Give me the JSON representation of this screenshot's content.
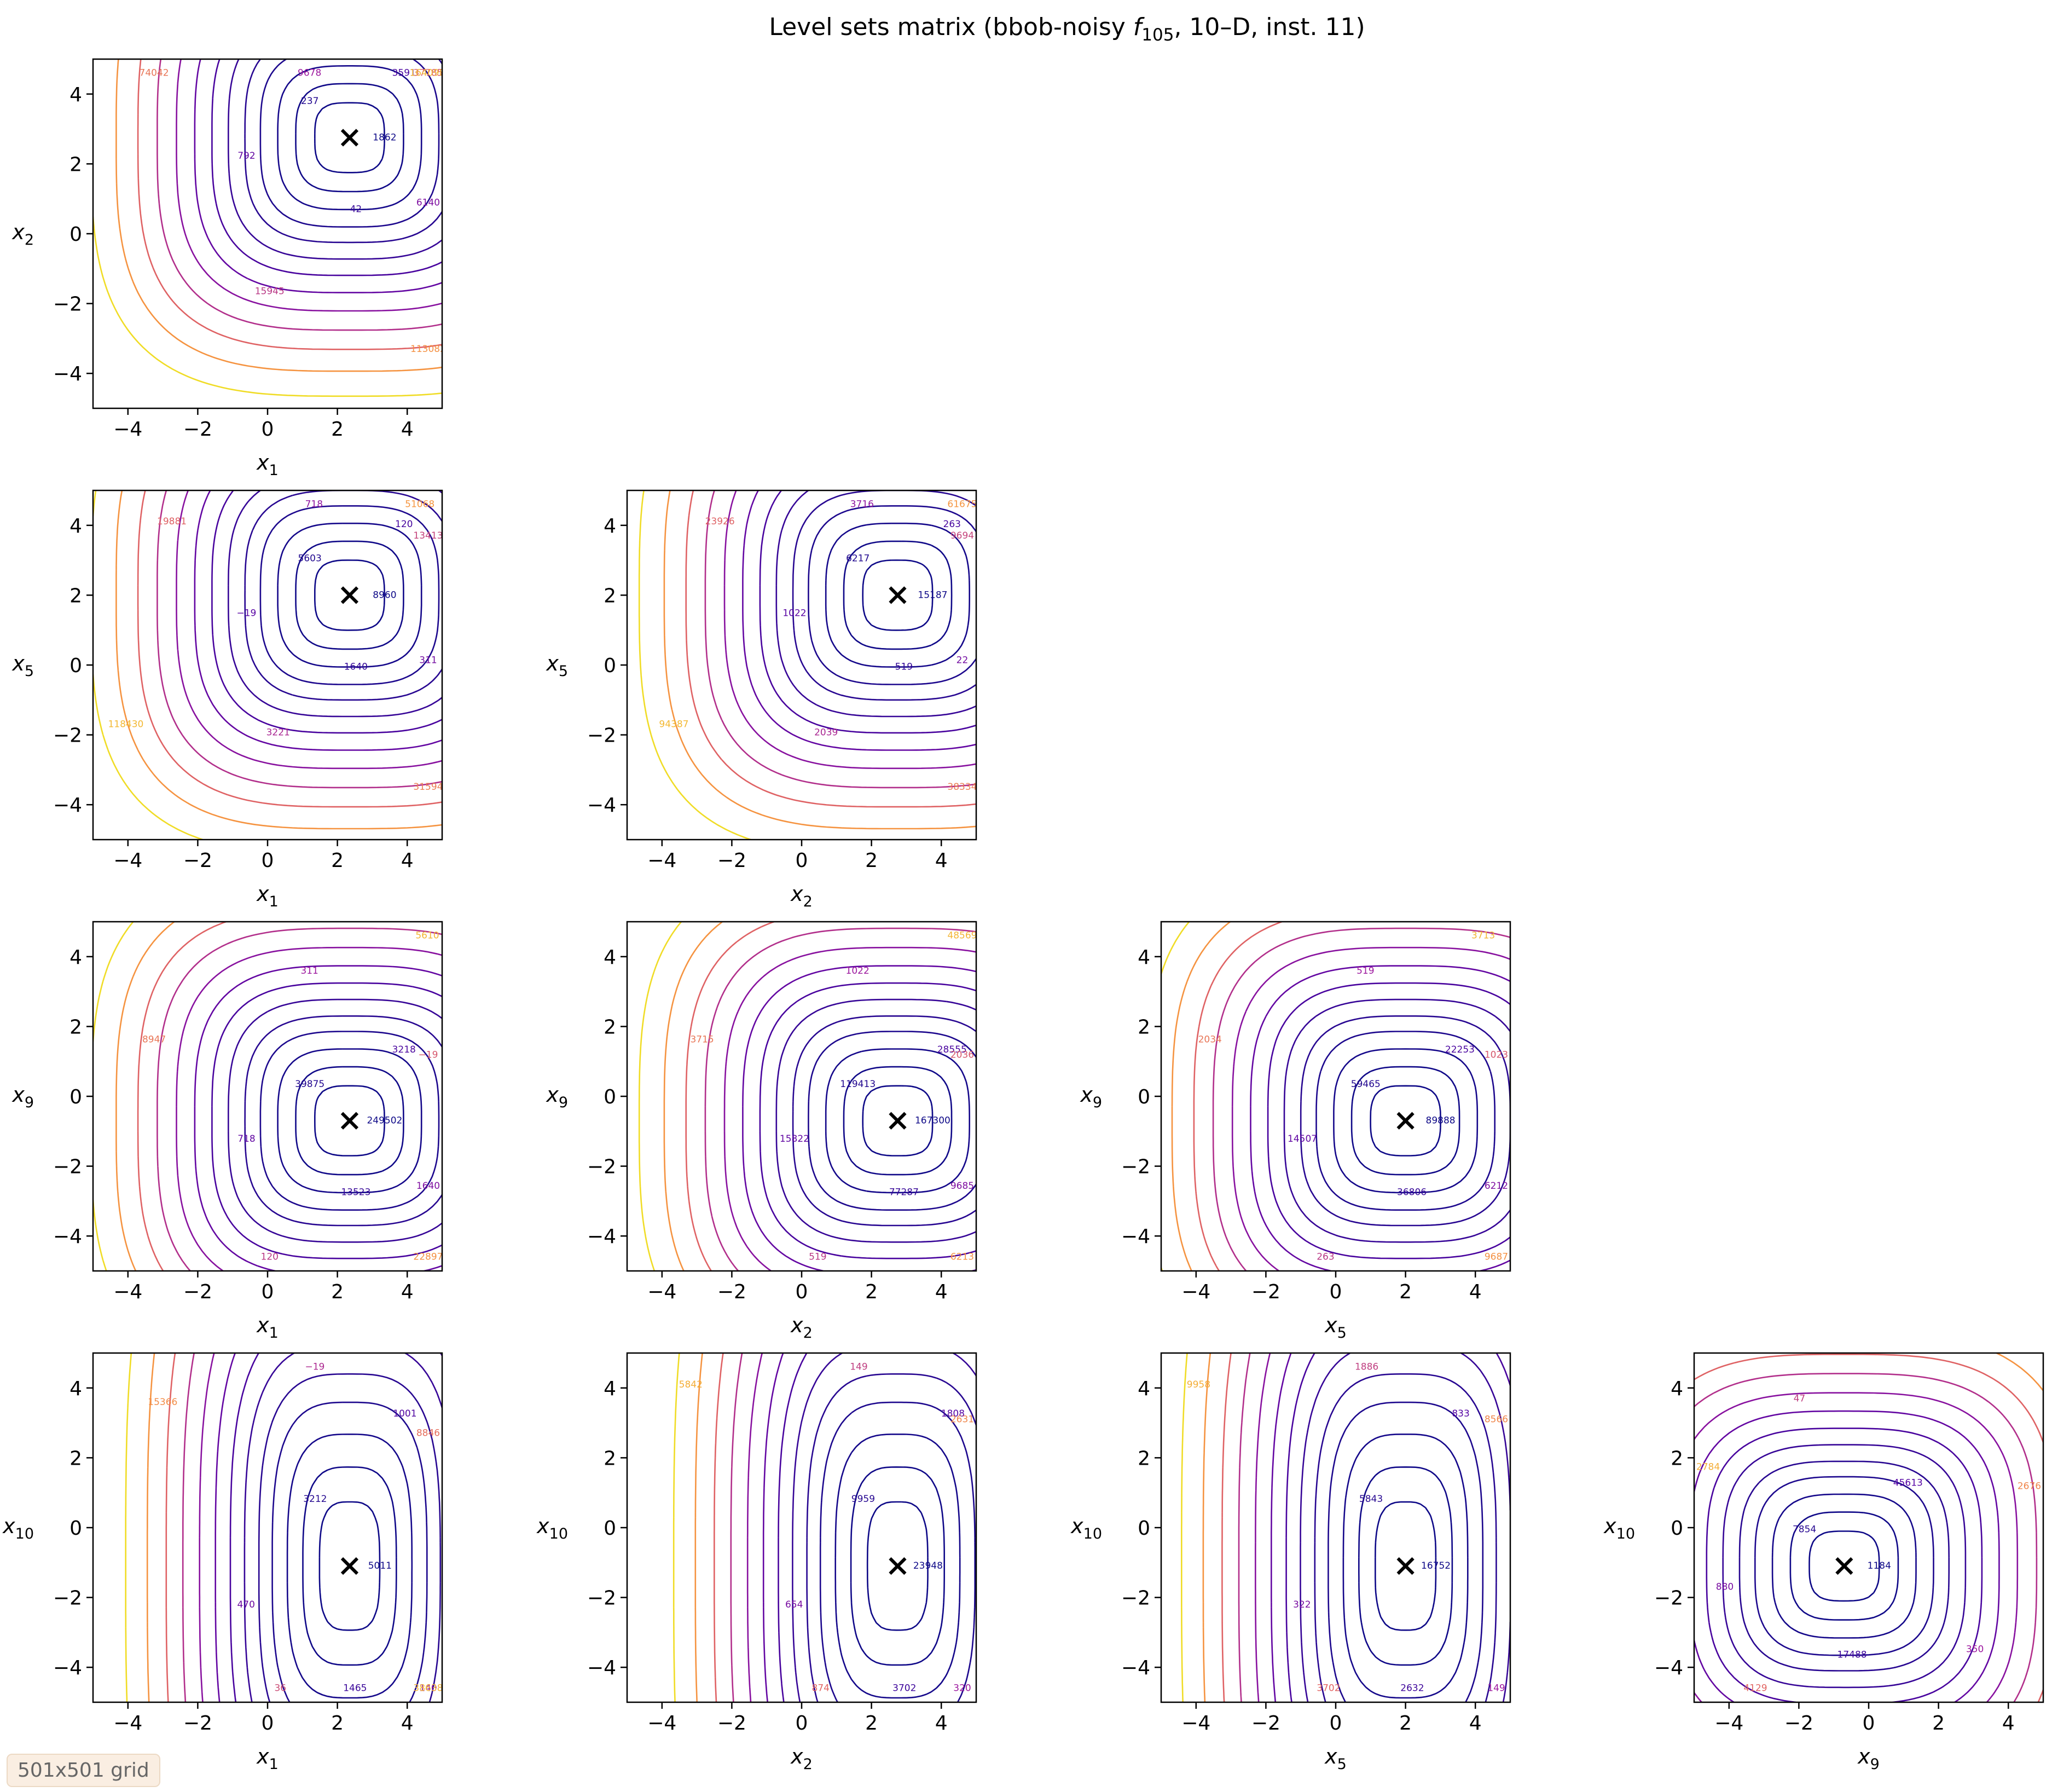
{
  "chart_data": {
    "type": "contour",
    "title": "Level sets matrix (bbob-noisy f105, 10–D, inst. 11)",
    "title_parts": {
      "prefix": "Level sets matrix (bbob-noisy ",
      "f": "f",
      "f_sub": "105",
      "suffix": ", 10–D, inst. 11)"
    },
    "colormap": "plasma",
    "marker": "x (black) at optimum",
    "variables": {
      "x1": {
        "base": "x",
        "sub": "1"
      },
      "x2": {
        "base": "x",
        "sub": "2"
      },
      "x5": {
        "base": "x",
        "sub": "5"
      },
      "x9": {
        "base": "x",
        "sub": "9"
      },
      "x10": {
        "base": "x",
        "sub": "10"
      }
    },
    "xlim": [
      -5,
      5
    ],
    "ylim": [
      -5,
      5
    ],
    "ticks": [
      -4,
      -2,
      0,
      2,
      4
    ],
    "tick_labels": [
      "−4",
      "−2",
      "0",
      "2",
      "4"
    ],
    "optimum": {
      "x1": 2.35,
      "x2": 2.75,
      "x5": 2.0,
      "x9": -0.7,
      "x10": -1.1
    },
    "panels": [
      {
        "row": 0,
        "col": 0,
        "xvar": "x1",
        "yvar": "x2",
        "contour_labels": [
          "1862",
          "237",
          "42",
          "3591",
          "792",
          "6140",
          "9678",
          "15945",
          "37785",
          "74042",
          "113082",
          "164098"
        ]
      },
      {
        "row": 1,
        "col": 0,
        "xvar": "x1",
        "yvar": "x5",
        "contour_labels": [
          "8960",
          "5603",
          "1640",
          "120",
          "−19",
          "311",
          "718",
          "3221",
          "13413",
          "19881",
          "31594",
          "51068",
          "118430"
        ]
      },
      {
        "row": 1,
        "col": 1,
        "xvar": "x2",
        "yvar": "x5",
        "contour_labels": [
          "15187",
          "6217",
          "519",
          "263",
          "1022",
          "22",
          "3716",
          "2039",
          "9694",
          "23926",
          "38334",
          "61675",
          "94387"
        ]
      },
      {
        "row": 2,
        "col": 0,
        "xvar": "x1",
        "yvar": "x9",
        "contour_labels": [
          "249502",
          "39875",
          "13523",
          "3218",
          "718",
          "1640",
          "311",
          "120",
          "−19",
          "8947",
          "22897",
          "5610"
        ]
      },
      {
        "row": 2,
        "col": 1,
        "xvar": "x2",
        "yvar": "x9",
        "contour_labels": [
          "167300",
          "119413",
          "77287",
          "28555",
          "15822",
          "9685",
          "1022",
          "519",
          "2036",
          "3715",
          "6213",
          "48569"
        ]
      },
      {
        "row": 2,
        "col": 2,
        "xvar": "x5",
        "yvar": "x9",
        "contour_labels": [
          "89888",
          "59465",
          "36806",
          "22253",
          "14507",
          "6212",
          "519",
          "263",
          "1023",
          "2034",
          "9687",
          "3713"
        ]
      },
      {
        "row": 3,
        "col": 0,
        "xvar": "x1",
        "yvar": "x10",
        "contour_labels": [
          "5011",
          "3212",
          "1465",
          "1001",
          "470",
          "140",
          "−19",
          "36",
          "8846",
          "15366",
          "38638"
        ]
      },
      {
        "row": 3,
        "col": 1,
        "xvar": "x2",
        "yvar": "x10",
        "contour_labels": [
          "23948",
          "9959",
          "3702",
          "1808",
          "654",
          "320",
          "149",
          "874",
          "2631",
          "5842"
        ]
      },
      {
        "row": 3,
        "col": 2,
        "xvar": "x5",
        "yvar": "x10",
        "contour_labels": [
          "16752",
          "5843",
          "2632",
          "833",
          "322",
          "149",
          "1886",
          "3702",
          "8566",
          "9958"
        ]
      },
      {
        "row": 3,
        "col": 3,
        "xvar": "x9",
        "yvar": "x10",
        "contour_labels": [
          "1184",
          "7854",
          "17488",
          "45613",
          "880",
          "350",
          "47",
          "4129",
          "2676",
          "2784"
        ]
      }
    ]
  },
  "footer_note": "501x501 grid"
}
